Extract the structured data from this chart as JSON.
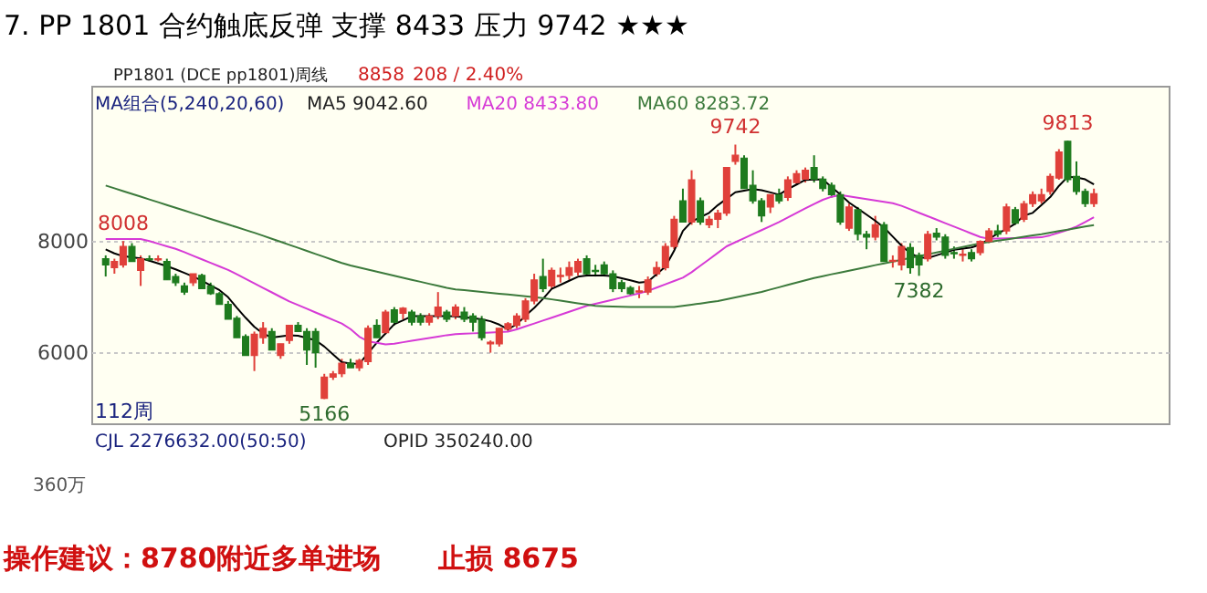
{
  "chart_data": {
    "type": "candlestick",
    "title": "7. PP 1801 合约触底反弹   支撑 8433     压力 9742    ★★★",
    "subtitle": "PP1801  (DCE pp1801)周线",
    "annotations": [
      "8858",
      "208 / 2.40%",
      "MA组合(5,240,20,60)",
      "112周",
      "CJL 2276632.00(50:50)",
      "OPID 350240.00",
      "360万",
      "操作建议：8780附近多单进场",
      "止损 8675",
      {
        "text": "8008",
        "y": 8008
      },
      {
        "text": "5166",
        "y": 5166
      },
      {
        "text": "9742",
        "y": 9742
      },
      {
        "text": "9813",
        "y": 9813
      },
      {
        "text": "7382",
        "y": 7382
      }
    ],
    "categories": [
      null,
      null,
      null,
      null,
      null,
      null,
      null,
      null,
      null,
      null,
      null,
      null,
      null,
      null,
      null,
      null,
      null,
      null,
      null,
      null,
      null,
      null,
      null,
      null,
      null,
      null,
      null,
      null,
      null,
      null,
      null,
      null,
      null,
      null,
      null,
      null,
      null,
      null,
      null,
      null,
      null,
      null,
      null,
      null,
      null,
      null,
      null,
      null,
      null,
      null,
      null,
      null,
      null,
      null,
      null,
      null,
      null,
      null,
      null,
      null,
      null,
      null,
      null,
      null,
      null,
      null,
      null,
      null,
      null,
      null,
      null,
      null,
      null,
      null,
      null,
      null,
      null,
      null,
      null,
      null,
      null,
      null,
      null,
      null,
      null,
      null,
      null,
      null,
      null,
      null,
      null,
      null,
      null,
      null,
      null,
      null,
      null,
      null,
      null,
      null,
      null,
      null,
      null,
      null,
      null,
      null,
      null,
      null,
      null,
      null,
      null,
      null,
      null,
      null
    ],
    "ohlc": [
      [
        7690,
        7750,
        7370,
        7580
      ],
      [
        7530,
        7690,
        7420,
        7640
      ],
      [
        7580,
        8008,
        7530,
        7910
      ],
      [
        7910,
        7970,
        7640,
        7640
      ],
      [
        7480,
        7750,
        7200,
        7690
      ],
      [
        7690,
        7750,
        7640,
        7670
      ],
      [
        7670,
        7750,
        7640,
        7690
      ],
      [
        7640,
        7690,
        7310,
        7310
      ],
      [
        7370,
        7420,
        7200,
        7260
      ],
      [
        7200,
        7260,
        7040,
        7090
      ],
      [
        7260,
        7420,
        7200,
        7420
      ],
      [
        7390,
        7420,
        7150,
        7150
      ],
      [
        7200,
        7260,
        7040,
        7060
      ],
      [
        7060,
        7090,
        6870,
        6870
      ],
      [
        6870,
        6930,
        6600,
        6600
      ],
      [
        6620,
        6660,
        6270,
        6270
      ],
      [
        6290,
        6330,
        5950,
        5950
      ],
      [
        5950,
        6380,
        5670,
        6330
      ],
      [
        6270,
        6550,
        6160,
        6440
      ],
      [
        6380,
        6440,
        6050,
        6050
      ],
      [
        5950,
        6160,
        5890,
        6160
      ],
      [
        6220,
        6490,
        6160,
        6490
      ],
      [
        6490,
        6550,
        6380,
        6380
      ],
      [
        6380,
        6440,
        5780,
        6050
      ],
      [
        6380,
        6440,
        5730,
        6000
      ],
      [
        5180,
        5620,
        5166,
        5560
      ],
      [
        5560,
        5670,
        5510,
        5620
      ],
      [
        5620,
        5890,
        5560,
        5810
      ],
      [
        5810,
        5890,
        5730,
        5730
      ],
      [
        5730,
        5890,
        5670,
        5860
      ],
      [
        5840,
        6490,
        5780,
        6440
      ],
      [
        6490,
        6600,
        6270,
        6270
      ],
      [
        6360,
        6770,
        6330,
        6730
      ],
      [
        6770,
        6820,
        6490,
        6550
      ],
      [
        6710,
        6820,
        6600,
        6800
      ],
      [
        6730,
        6770,
        6490,
        6550
      ],
      [
        6660,
        6710,
        6490,
        6550
      ],
      [
        6550,
        6710,
        6490,
        6660
      ],
      [
        6660,
        7090,
        6600,
        6820
      ],
      [
        6730,
        6770,
        6550,
        6600
      ],
      [
        6660,
        6870,
        6600,
        6820
      ],
      [
        6730,
        6820,
        6550,
        6600
      ],
      [
        6660,
        6710,
        6380,
        6550
      ],
      [
        6600,
        6660,
        6220,
        6270
      ],
      [
        6160,
        6220,
        6000,
        6190
      ],
      [
        6160,
        6440,
        6110,
        6440
      ],
      [
        6420,
        6550,
        6380,
        6520
      ],
      [
        6490,
        6710,
        6440,
        6660
      ],
      [
        6600,
        6980,
        6550,
        6930
      ],
      [
        6930,
        7420,
        6870,
        7310
      ],
      [
        7370,
        7690,
        7090,
        7150
      ],
      [
        7200,
        7530,
        7150,
        7480
      ],
      [
        7370,
        7530,
        7260,
        7390
      ],
      [
        7390,
        7640,
        7310,
        7530
      ],
      [
        7450,
        7690,
        7390,
        7640
      ],
      [
        7690,
        7750,
        7370,
        7420
      ],
      [
        7480,
        7580,
        7370,
        7460
      ],
      [
        7580,
        7640,
        7370,
        7420
      ],
      [
        7420,
        7480,
        7090,
        7150
      ],
      [
        7260,
        7310,
        7090,
        7150
      ],
      [
        7170,
        7200,
        7040,
        7060
      ],
      [
        7090,
        7200,
        6980,
        7110
      ],
      [
        7090,
        7370,
        7040,
        7310
      ],
      [
        7420,
        7640,
        7370,
        7530
      ],
      [
        7530,
        7970,
        7480,
        7910
      ],
      [
        7910,
        8460,
        7860,
        8400
      ],
      [
        8730,
        8950,
        8350,
        8350
      ],
      [
        8350,
        9280,
        8300,
        9110
      ],
      [
        8730,
        8790,
        8300,
        8350
      ],
      [
        8300,
        8460,
        8240,
        8400
      ],
      [
        8400,
        8570,
        8240,
        8510
      ],
      [
        8510,
        9330,
        8460,
        9330
      ],
      [
        9440,
        9742,
        9380,
        9550
      ],
      [
        9500,
        9550,
        8950,
        8950
      ],
      [
        9010,
        9280,
        8680,
        8730
      ],
      [
        8730,
        8780,
        8350,
        8460
      ],
      [
        8620,
        8840,
        8510,
        8840
      ],
      [
        8840,
        8950,
        8680,
        8730
      ],
      [
        8790,
        9170,
        8730,
        9110
      ],
      [
        9060,
        9280,
        9010,
        9220
      ],
      [
        9120,
        9330,
        9060,
        9280
      ],
      [
        9330,
        9550,
        9060,
        9120
      ],
      [
        9120,
        9170,
        8900,
        8950
      ],
      [
        9010,
        9060,
        8790,
        8840
      ],
      [
        8840,
        8900,
        8300,
        8350
      ],
      [
        8240,
        8680,
        8190,
        8620
      ],
      [
        8570,
        8620,
        8020,
        8130
      ],
      [
        8130,
        8190,
        7860,
        8080
      ],
      [
        8080,
        8460,
        8020,
        8300
      ],
      [
        8300,
        8350,
        7640,
        7640
      ],
      [
        7640,
        7750,
        7530,
        7660
      ],
      [
        7580,
        7970,
        7480,
        7910
      ],
      [
        7890,
        7970,
        7420,
        7530
      ],
      [
        7750,
        7800,
        7382,
        7580
      ],
      [
        7690,
        8190,
        7640,
        8130
      ],
      [
        8150,
        8240,
        8020,
        8080
      ],
      [
        8080,
        8130,
        7690,
        7750
      ],
      [
        7800,
        7910,
        7690,
        7780
      ],
      [
        7750,
        7860,
        7640,
        7770
      ],
      [
        7800,
        7860,
        7640,
        7690
      ],
      [
        7800,
        8020,
        7750,
        8000
      ],
      [
        8000,
        8240,
        7970,
        8190
      ],
      [
        8190,
        8300,
        8080,
        8130
      ],
      [
        8190,
        8680,
        8130,
        8620
      ],
      [
        8570,
        8620,
        8300,
        8330
      ],
      [
        8400,
        8730,
        8350,
        8680
      ],
      [
        8680,
        8900,
        8620,
        8840
      ],
      [
        8730,
        8950,
        8680,
        8840
      ],
      [
        8900,
        9220,
        8840,
        9170
      ],
      [
        9140,
        9660,
        9110,
        9610
      ],
      [
        9800,
        9813,
        9060,
        9110
      ],
      [
        9170,
        9440,
        8840,
        8900
      ],
      [
        8900,
        8950,
        8620,
        8680
      ],
      [
        8680,
        8950,
        8620,
        8858
      ]
    ],
    "colors": [
      "#1e7b1e",
      "#e0403a",
      "#e0403a",
      "#1e7b1e",
      "#e0403a",
      "#1e7b1e",
      "#e0403a",
      "#1e7b1e",
      "#1e7b1e",
      "#1e7b1e",
      "#e0403a",
      "#1e7b1e",
      "#1e7b1e",
      "#1e7b1e",
      "#1e7b1e",
      "#1e7b1e",
      "#1e7b1e",
      "#e0403a",
      "#e0403a",
      "#1e7b1e",
      "#e0403a",
      "#e0403a",
      "#1e7b1e",
      "#1e7b1e",
      "#1e7b1e",
      "#e0403a",
      "#e0403a",
      "#e0403a",
      "#1e7b1e",
      "#e0403a",
      "#e0403a",
      "#1e7b1e",
      "#e0403a",
      "#1e7b1e",
      "#e0403a",
      "#1e7b1e",
      "#1e7b1e",
      "#e0403a",
      "#e0403a",
      "#1e7b1e",
      "#e0403a",
      "#1e7b1e",
      "#1e7b1e",
      "#1e7b1e",
      "#e0403a",
      "#e0403a",
      "#e0403a",
      "#e0403a",
      "#e0403a",
      "#e0403a",
      "#1e7b1e",
      "#e0403a",
      "#e0403a",
      "#e0403a",
      "#e0403a",
      "#1e7b1e",
      "#1e7b1e",
      "#1e7b1e",
      "#1e7b1e",
      "#1e7b1e",
      "#1e7b1e",
      "#e0403a",
      "#e0403a",
      "#e0403a",
      "#e0403a",
      "#e0403a",
      "#1e7b1e",
      "#e0403a",
      "#1e7b1e",
      "#e0403a",
      "#e0403a",
      "#e0403a",
      "#e0403a",
      "#1e7b1e",
      "#1e7b1e",
      "#1e7b1e",
      "#e0403a",
      "#1e7b1e",
      "#e0403a",
      "#e0403a",
      "#e0403a",
      "#1e7b1e",
      "#1e7b1e",
      "#1e7b1e",
      "#1e7b1e",
      "#e0403a",
      "#1e7b1e",
      "#1e7b1e",
      "#e0403a",
      "#1e7b1e",
      "#e0403a",
      "#e0403a",
      "#1e7b1e",
      "#1e7b1e",
      "#e0403a",
      "#1e7b1e",
      "#1e7b1e",
      "#1e7b1e",
      "#e0403a",
      "#1e7b1e",
      "#e0403a",
      "#e0403a",
      "#1e7b1e",
      "#e0403a",
      "#1e7b1e",
      "#e0403a",
      "#e0403a",
      "#e0403a",
      "#e0403a",
      "#e0403a",
      "#1e7b1e",
      "#1e7b1e",
      "#1e7b1e",
      "#e0403a"
    ],
    "series": [
      {
        "name": "MA5 9042.60",
        "color": "#000000",
        "type": "line",
        "values": [
          7858,
          7785,
          7735,
          7715,
          7697,
          7654,
          7604,
          7555,
          7498,
          7434,
          7369,
          7295,
          7210,
          7126,
          6997,
          6806,
          6628,
          6464,
          6343,
          6272,
          6294,
          6315,
          6305,
          6264,
          6223,
          6110,
          5968,
          5829,
          5806,
          5800,
          5992,
          6181,
          6345,
          6513,
          6582,
          6656,
          6656,
          6656,
          6656,
          6656,
          6652,
          6637,
          6621,
          6601,
          6565,
          6505,
          6422,
          6510,
          6664,
          6805,
          6967,
          7147,
          7220,
          7293,
          7366,
          7388,
          7388,
          7388,
          7376,
          7338,
          7300,
          7262,
          7277,
          7413,
          7548,
          7834,
          8189,
          8357,
          8438,
          8514,
          8653,
          8768,
          8884,
          8915,
          8943,
          8923,
          8883,
          8842,
          8941,
          9024,
          9107,
          9115,
          9115,
          8978,
          8842,
          8701,
          8591,
          8482,
          8372,
          8249,
          8087,
          7925,
          7791,
          7710,
          7703,
          7751,
          7800,
          7849,
          7873,
          7893,
          7943,
          8044,
          8145,
          8223,
          8320,
          8466,
          8514,
          8656,
          8797,
          9000,
          9162,
          9150,
          9118,
          9027
        ]
      },
      {
        "name": "MA20 8433.80",
        "color": "#d63ad6",
        "type": "line",
        "values": [
          8044,
          8044,
          8044,
          8044,
          8044,
          8007,
          7960,
          7914,
          7867,
          7807,
          7743,
          7679,
          7615,
          7552,
          7488,
          7410,
          7328,
          7247,
          7165,
          7084,
          7002,
          6922,
          6856,
          6790,
          6724,
          6657,
          6591,
          6525,
          6424,
          6287,
          6204,
          6176,
          6148,
          6162,
          6188,
          6213,
          6239,
          6264,
          6290,
          6315,
          6332,
          6340,
          6348,
          6356,
          6364,
          6372,
          6380,
          6419,
          6472,
          6525,
          6577,
          6630,
          6683,
          6736,
          6789,
          6841,
          6879,
          6916,
          6954,
          6992,
          7029,
          7067,
          7111,
          7170,
          7230,
          7289,
          7348,
          7447,
          7563,
          7680,
          7796,
          7913,
          7986,
          8059,
          8131,
          8204,
          8277,
          8350,
          8431,
          8513,
          8594,
          8675,
          8749,
          8804,
          8835,
          8810,
          8786,
          8761,
          8737,
          8712,
          8688,
          8641,
          8579,
          8516,
          8454,
          8392,
          8330,
          8268,
          8205,
          8143,
          8081,
          8046,
          8051,
          8056,
          8061,
          8066,
          8070,
          8075,
          8111,
          8159,
          8207,
          8266,
          8351,
          8437
        ]
      },
      {
        "name": "MA60 8283.72",
        "color": "#3c7a3c",
        "type": "line",
        "values": [
          9006,
          8956,
          8906,
          8856,
          8806,
          8756,
          8706,
          8656,
          8606,
          8556,
          8506,
          8456,
          8406,
          8356,
          8306,
          8256,
          8206,
          8156,
          8104,
          8049,
          7995,
          7940,
          7886,
          7831,
          7776,
          7722,
          7667,
          7613,
          7567,
          7530,
          7494,
          7457,
          7421,
          7384,
          7348,
          7311,
          7275,
          7238,
          7202,
          7165,
          7139,
          7124,
          7108,
          7092,
          7077,
          7061,
          7046,
          7030,
          7014,
          6999,
          6983,
          6959,
          6936,
          6912,
          6888,
          6865,
          6841,
          6836,
          6831,
          6825,
          6820,
          6820,
          6820,
          6820,
          6820,
          6820,
          6842,
          6864,
          6885,
          6907,
          6929,
          6962,
          6995,
          7027,
          7060,
          7093,
          7135,
          7177,
          7219,
          7260,
          7302,
          7344,
          7377,
          7410,
          7442,
          7475,
          7508,
          7541,
          7574,
          7606,
          7639,
          7672,
          7705,
          7737,
          7770,
          7803,
          7836,
          7868,
          7901,
          7934,
          7967,
          7990,
          8014,
          8037,
          8061,
          8084,
          8108,
          8131,
          8158,
          8186,
          8213,
          8240,
          8268,
          8295
        ]
      }
    ],
    "ylim": [
      4730,
      10800
    ],
    "yticks": [
      6000,
      8000
    ],
    "tick_labels": "y",
    "grid": "y"
  }
}
